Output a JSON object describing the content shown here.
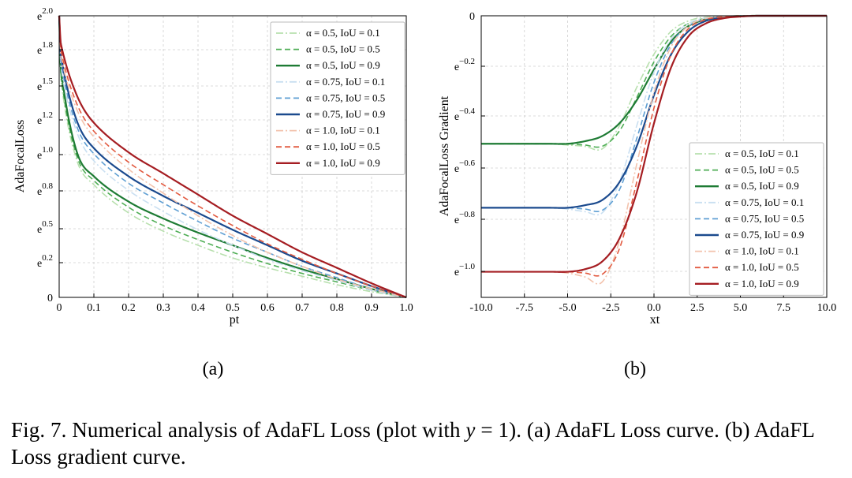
{
  "chart_data": [
    {
      "type": "line",
      "panel": "(a)",
      "xlabel": "pt",
      "ylabel": "AdaFocalLoss",
      "xlim": [
        0,
        1.0
      ],
      "ylim": [
        0,
        2.0
      ],
      "x_ticks": [
        "0",
        "0.1",
        "0.2",
        "0.3",
        "0.4",
        "0.5",
        "0.6",
        "0.7",
        "0.8",
        "0.9",
        "1.0"
      ],
      "y_ticks": [
        {
          "base": "0",
          "exp": ""
        },
        {
          "base": "e",
          "exp": "0.2"
        },
        {
          "base": "e",
          "exp": "0.5"
        },
        {
          "base": "e",
          "exp": "0.8"
        },
        {
          "base": "e",
          "exp": "1.0"
        },
        {
          "base": "e",
          "exp": "1.2"
        },
        {
          "base": "e",
          "exp": "1.5"
        },
        {
          "base": "e",
          "exp": "1.8"
        },
        {
          "base": "e",
          "exp": "2.0"
        }
      ],
      "grid": true,
      "legend_position": "top-right",
      "series": [
        {
          "name": "α = 0.5, IoU = 0.1",
          "color": "#b8e0ae",
          "dash": "dashdot",
          "x": [
            0.0,
            0.005,
            0.05,
            0.1,
            0.2,
            0.3,
            0.4,
            0.5,
            0.6,
            0.7,
            0.8,
            0.9,
            1.0
          ],
          "values": [
            2.0,
            1.55,
            0.98,
            0.8,
            0.6,
            0.47,
            0.37,
            0.28,
            0.21,
            0.15,
            0.09,
            0.04,
            0.0
          ]
        },
        {
          "name": "α = 0.5, IoU = 0.5",
          "color": "#4fae55",
          "dash": "dashed",
          "x": [
            0.0,
            0.005,
            0.05,
            0.1,
            0.2,
            0.3,
            0.4,
            0.5,
            0.6,
            0.7,
            0.8,
            0.9,
            1.0
          ],
          "values": [
            2.0,
            1.58,
            1.01,
            0.83,
            0.64,
            0.51,
            0.41,
            0.32,
            0.24,
            0.17,
            0.11,
            0.05,
            0.0
          ]
        },
        {
          "name": "α = 0.5, IoU = 0.9",
          "color": "#1e7b34",
          "dash": "solid",
          "x": [
            0.0,
            0.005,
            0.05,
            0.1,
            0.2,
            0.3,
            0.4,
            0.5,
            0.6,
            0.7,
            0.8,
            0.9,
            1.0
          ],
          "values": [
            2.0,
            1.62,
            1.04,
            0.86,
            0.68,
            0.56,
            0.46,
            0.37,
            0.28,
            0.2,
            0.13,
            0.06,
            0.0
          ]
        },
        {
          "name": "α = 0.75, IoU = 0.1",
          "color": "#c9dff1",
          "dash": "dashdot",
          "x": [
            0.0,
            0.005,
            0.05,
            0.1,
            0.2,
            0.3,
            0.4,
            0.5,
            0.6,
            0.7,
            0.8,
            0.9,
            1.0
          ],
          "values": [
            2.0,
            1.64,
            1.18,
            0.97,
            0.76,
            0.61,
            0.48,
            0.37,
            0.27,
            0.19,
            0.12,
            0.05,
            0.0
          ]
        },
        {
          "name": "α = 0.75, IoU = 0.5",
          "color": "#5f9fd3",
          "dash": "dashed",
          "x": [
            0.0,
            0.005,
            0.05,
            0.1,
            0.2,
            0.3,
            0.4,
            0.5,
            0.6,
            0.7,
            0.8,
            0.9,
            1.0
          ],
          "values": [
            2.0,
            1.68,
            1.22,
            1.02,
            0.81,
            0.67,
            0.54,
            0.42,
            0.32,
            0.22,
            0.14,
            0.06,
            0.0
          ]
        },
        {
          "name": "α = 0.75, IoU = 0.9",
          "color": "#1b4a8e",
          "dash": "solid",
          "x": [
            0.0,
            0.005,
            0.05,
            0.1,
            0.2,
            0.3,
            0.4,
            0.5,
            0.6,
            0.7,
            0.8,
            0.9,
            1.0
          ],
          "values": [
            2.0,
            1.72,
            1.26,
            1.06,
            0.86,
            0.72,
            0.6,
            0.48,
            0.37,
            0.26,
            0.17,
            0.08,
            0.0
          ]
        },
        {
          "name": "α = 1.0, IoU = 0.1",
          "color": "#f3c3ad",
          "dash": "dashdot",
          "x": [
            0.0,
            0.005,
            0.05,
            0.1,
            0.2,
            0.3,
            0.4,
            0.5,
            0.6,
            0.7,
            0.8,
            0.9,
            1.0
          ],
          "values": [
            2.0,
            1.72,
            1.34,
            1.14,
            0.91,
            0.74,
            0.58,
            0.44,
            0.32,
            0.22,
            0.13,
            0.06,
            0.0
          ]
        },
        {
          "name": "α = 1.0, IoU = 0.5",
          "color": "#e25a40",
          "dash": "dashed",
          "x": [
            0.0,
            0.005,
            0.05,
            0.1,
            0.2,
            0.3,
            0.4,
            0.5,
            0.6,
            0.7,
            0.8,
            0.9,
            1.0
          ],
          "values": [
            2.0,
            1.76,
            1.38,
            1.18,
            0.96,
            0.8,
            0.65,
            0.51,
            0.38,
            0.27,
            0.17,
            0.08,
            0.0
          ]
        },
        {
          "name": "α = 1.0, IoU = 0.9",
          "color": "#a51d22",
          "dash": "solid",
          "x": [
            0.0,
            0.005,
            0.05,
            0.1,
            0.2,
            0.3,
            0.4,
            0.5,
            0.6,
            0.7,
            0.8,
            0.9,
            1.0
          ],
          "values": [
            2.0,
            1.8,
            1.44,
            1.24,
            1.03,
            0.88,
            0.73,
            0.58,
            0.45,
            0.32,
            0.21,
            0.1,
            0.0
          ]
        }
      ]
    },
    {
      "type": "line",
      "panel": "(b)",
      "xlabel": "xt",
      "ylabel": "AdaFocalLoss Gradient",
      "xlim": [
        -10.0,
        10.0
      ],
      "ylim": [
        -1.1,
        0.0
      ],
      "x_ticks": [
        "-10.0",
        "-7.5",
        "-5.0",
        "-2.5",
        "0.0",
        "2.5",
        "5.0",
        "7.5",
        "10.0"
      ],
      "y_ticks": [
        {
          "base": "0",
          "exp": ""
        },
        {
          "base": "e",
          "exp": "−0.2"
        },
        {
          "base": "e",
          "exp": "−0.4"
        },
        {
          "base": "e",
          "exp": "−0.6"
        },
        {
          "base": "e",
          "exp": "−0.8"
        },
        {
          "base": "e",
          "exp": "−1.0"
        }
      ],
      "grid": true,
      "legend_position": "bottom-right",
      "series": [
        {
          "name": "α = 0.5, IoU = 0.1",
          "color": "#b8e0ae",
          "dash": "dashdot",
          "x": [
            -10,
            -6,
            -5,
            -4,
            -3,
            -2,
            -1,
            0,
            1,
            2,
            3,
            4,
            5,
            6,
            10
          ],
          "values": [
            -0.5,
            -0.5,
            -0.505,
            -0.51,
            -0.52,
            -0.43,
            -0.28,
            -0.15,
            -0.06,
            -0.02,
            -0.005,
            -0.002,
            0.0,
            0.0,
            0.0
          ]
        },
        {
          "name": "α = 0.5, IoU = 0.5",
          "color": "#4fae55",
          "dash": "dashed",
          "x": [
            -10,
            -6,
            -5,
            -4,
            -3,
            -2,
            -1,
            0,
            1,
            2,
            3,
            4,
            5,
            6,
            10
          ],
          "values": [
            -0.5,
            -0.5,
            -0.5,
            -0.505,
            -0.51,
            -0.45,
            -0.32,
            -0.18,
            -0.08,
            -0.03,
            -0.01,
            -0.003,
            0.0,
            0.0,
            0.0
          ]
        },
        {
          "name": "α = 0.5, IoU = 0.9",
          "color": "#1e7b34",
          "dash": "solid",
          "x": [
            -10,
            -6,
            -5,
            -4,
            -3,
            -2,
            -1,
            0,
            1,
            2,
            3,
            4,
            5,
            6,
            10
          ],
          "values": [
            -0.5,
            -0.5,
            -0.5,
            -0.49,
            -0.47,
            -0.42,
            -0.33,
            -0.21,
            -0.1,
            -0.04,
            -0.015,
            -0.005,
            -0.001,
            0.0,
            0.0
          ]
        },
        {
          "name": "α = 0.75, IoU = 0.1",
          "color": "#c9dff1",
          "dash": "dashdot",
          "x": [
            -10,
            -6,
            -5,
            -4,
            -3,
            -2,
            -1,
            0,
            1,
            2,
            3,
            4,
            5,
            6,
            10
          ],
          "values": [
            -0.75,
            -0.75,
            -0.755,
            -0.765,
            -0.77,
            -0.65,
            -0.43,
            -0.22,
            -0.09,
            -0.03,
            -0.008,
            -0.002,
            0.0,
            0.0,
            0.0
          ]
        },
        {
          "name": "α = 0.75, IoU = 0.5",
          "color": "#5f9fd3",
          "dash": "dashed",
          "x": [
            -10,
            -6,
            -5,
            -4,
            -3,
            -2,
            -1,
            0,
            1,
            2,
            3,
            4,
            5,
            6,
            10
          ],
          "values": [
            -0.75,
            -0.75,
            -0.75,
            -0.755,
            -0.76,
            -0.68,
            -0.48,
            -0.26,
            -0.11,
            -0.04,
            -0.012,
            -0.003,
            0.0,
            0.0,
            0.0
          ]
        },
        {
          "name": "α = 0.75, IoU = 0.9",
          "color": "#1b4a8e",
          "dash": "solid",
          "x": [
            -10,
            -6,
            -5,
            -4,
            -3,
            -2,
            -1,
            0,
            1,
            2,
            3,
            4,
            5,
            6,
            10
          ],
          "values": [
            -0.75,
            -0.75,
            -0.75,
            -0.74,
            -0.72,
            -0.65,
            -0.51,
            -0.31,
            -0.15,
            -0.06,
            -0.02,
            -0.007,
            -0.002,
            0.0,
            0.0
          ]
        },
        {
          "name": "α = 1.0, IoU = 0.1",
          "color": "#f3c3ad",
          "dash": "dashdot",
          "x": [
            -10,
            -6,
            -5,
            -4,
            -3,
            -2,
            -1,
            0,
            1,
            2,
            3,
            4,
            5,
            6,
            10
          ],
          "values": [
            -1.0,
            -1.0,
            -1.005,
            -1.02,
            -1.04,
            -0.88,
            -0.58,
            -0.3,
            -0.12,
            -0.04,
            -0.01,
            -0.003,
            0.0,
            0.0,
            0.0
          ]
        },
        {
          "name": "α = 1.0, IoU = 0.5",
          "color": "#e25a40",
          "dash": "dashed",
          "x": [
            -10,
            -6,
            -5,
            -4,
            -3,
            -2,
            -1,
            0,
            1,
            2,
            3,
            4,
            5,
            6,
            10
          ],
          "values": [
            -1.0,
            -1.0,
            -1.0,
            -1.005,
            -1.01,
            -0.91,
            -0.65,
            -0.36,
            -0.15,
            -0.05,
            -0.015,
            -0.004,
            0.0,
            0.0,
            0.0
          ]
        },
        {
          "name": "α = 1.0, IoU = 0.9",
          "color": "#a51d22",
          "dash": "solid",
          "x": [
            -10,
            -6,
            -5,
            -4,
            -3,
            -2,
            -1,
            0,
            1,
            2,
            3,
            4,
            5,
            6,
            10
          ],
          "values": [
            -1.0,
            -1.0,
            -1.0,
            -0.99,
            -0.96,
            -0.87,
            -0.69,
            -0.42,
            -0.2,
            -0.08,
            -0.03,
            -0.01,
            -0.003,
            0.0,
            0.0
          ]
        }
      ]
    }
  ],
  "caption": {
    "prefix": "Fig. 7.  Numerical analysis of AdaFL Loss (plot with ",
    "var": "y",
    "suffix": " = 1). (a) AdaFL Loss curve. (b) AdaFL Loss gradient curve."
  }
}
